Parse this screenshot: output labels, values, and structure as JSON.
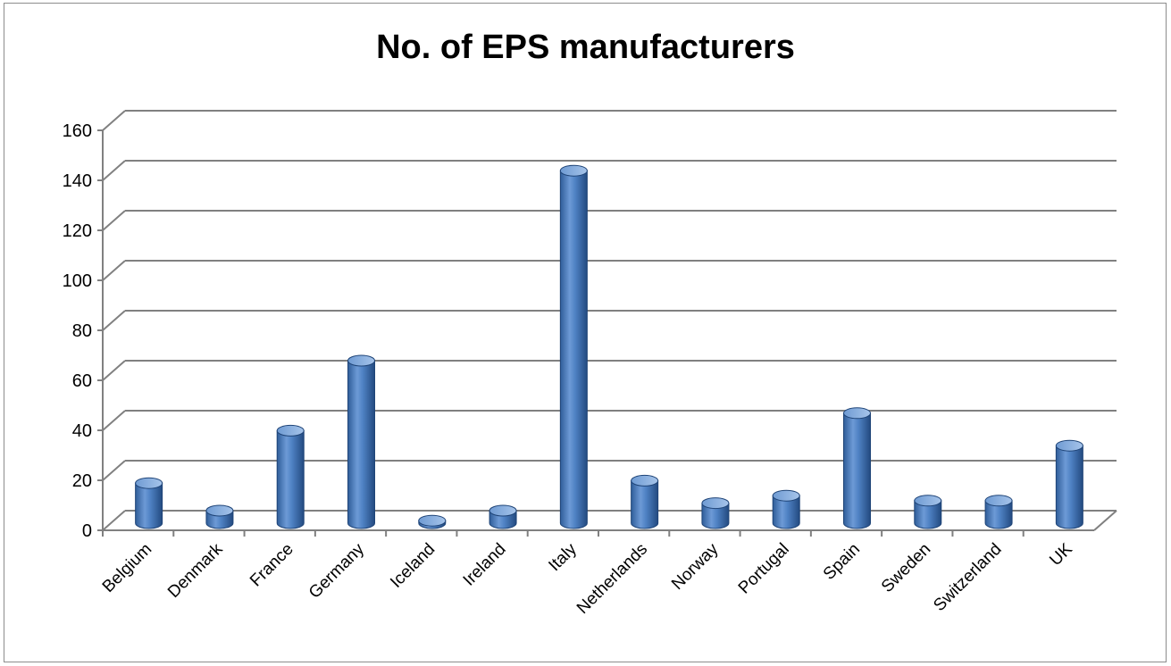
{
  "chart_data": {
    "type": "bar",
    "title": "No. of EPS manufacturers",
    "xlabel": "",
    "ylabel": "",
    "categories": [
      "Belgium",
      "Denmark",
      "France",
      "Germany",
      "Iceland",
      "Ireland",
      "Italy",
      "Netherlands",
      "Norway",
      "Portugal",
      "Spain",
      "Sweden",
      "Switzerland",
      "UK"
    ],
    "values": [
      16,
      5,
      37,
      65,
      1,
      5,
      141,
      17,
      8,
      11,
      44,
      9,
      9,
      31
    ],
    "yticks": [
      "0",
      "20",
      "40",
      "60",
      "80",
      "100",
      "120",
      "140",
      "160"
    ],
    "ylim": [
      0,
      160
    ],
    "grid": true,
    "legend": "none",
    "colors": {
      "bar": "#4a7ebb",
      "bar_dark": "#2a5590",
      "bar_light": "#8fb4e3",
      "grid": "#808080"
    }
  }
}
